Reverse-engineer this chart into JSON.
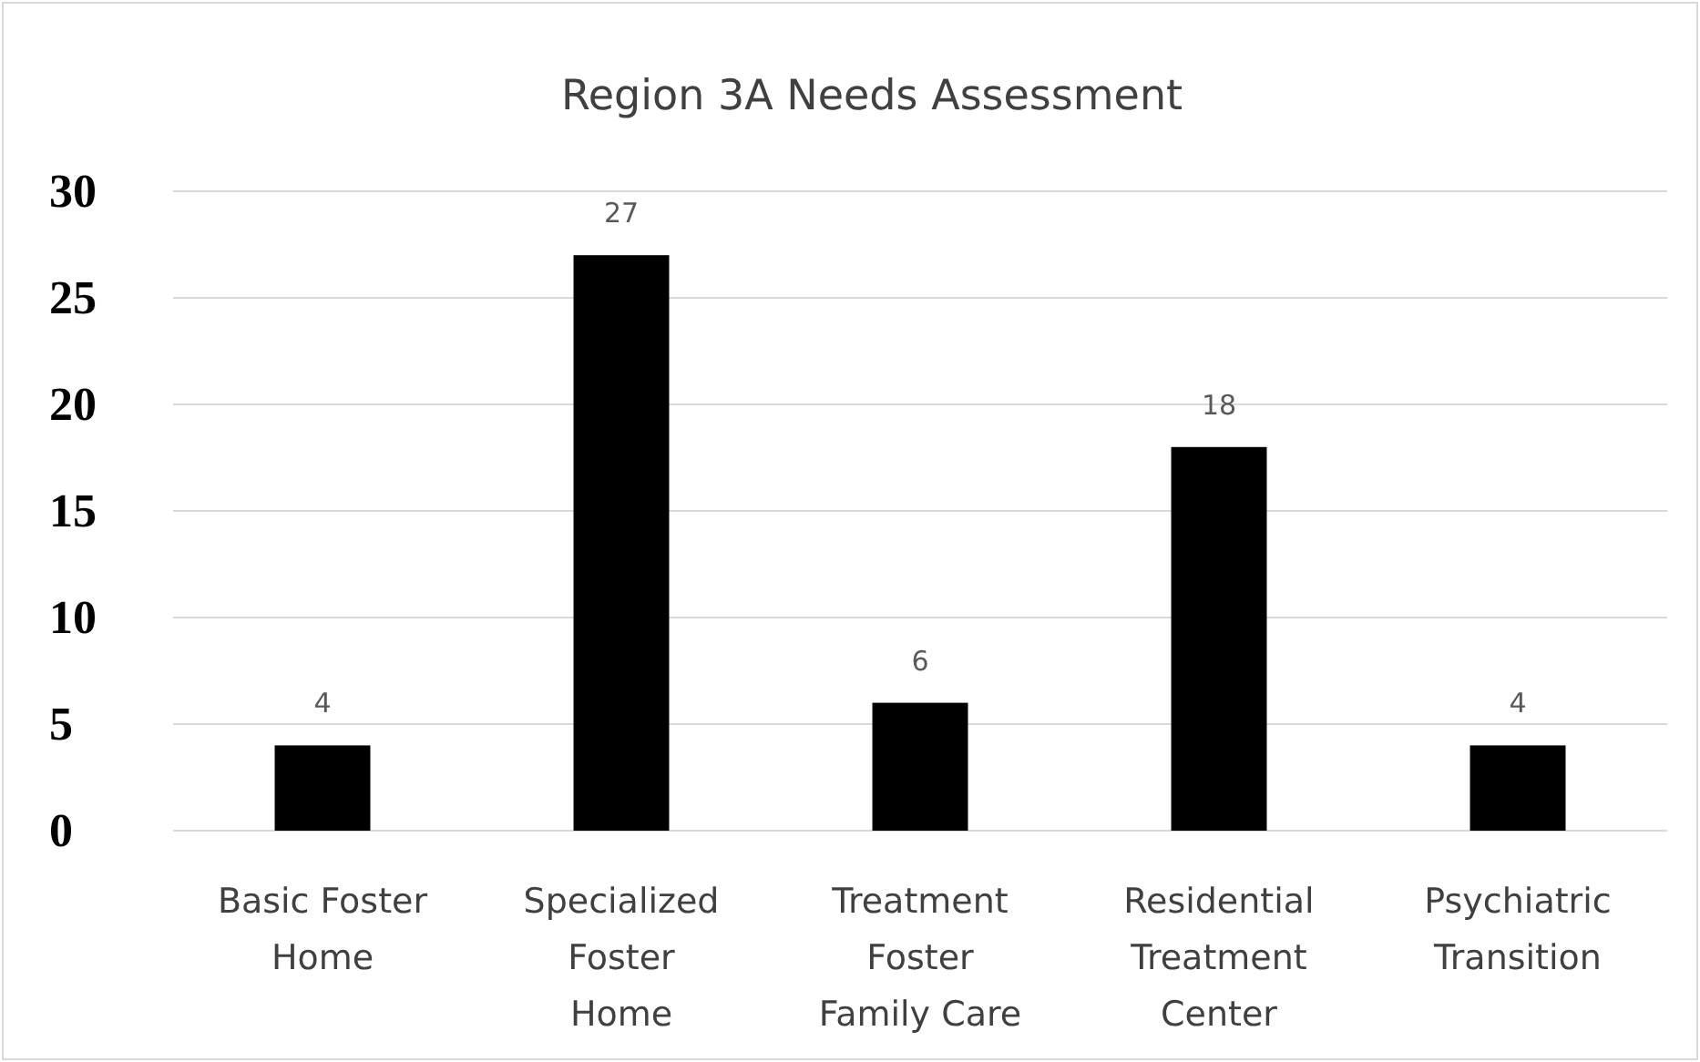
{
  "chart_data": {
    "type": "bar",
    "title": "Region 3A Needs Assessment",
    "categories": [
      "Basic Foster Home",
      "Specialized Foster Home",
      "Treatment Foster Family Care",
      "Residential Treatment Center",
      "Psychiatric Transition"
    ],
    "values": [
      4,
      27,
      6,
      18,
      4
    ],
    "color": "#000000",
    "ylim": [
      0,
      30
    ],
    "yticks": [
      0,
      5,
      10,
      15,
      20,
      25,
      30
    ],
    "grid": "y",
    "data_labels": true
  }
}
